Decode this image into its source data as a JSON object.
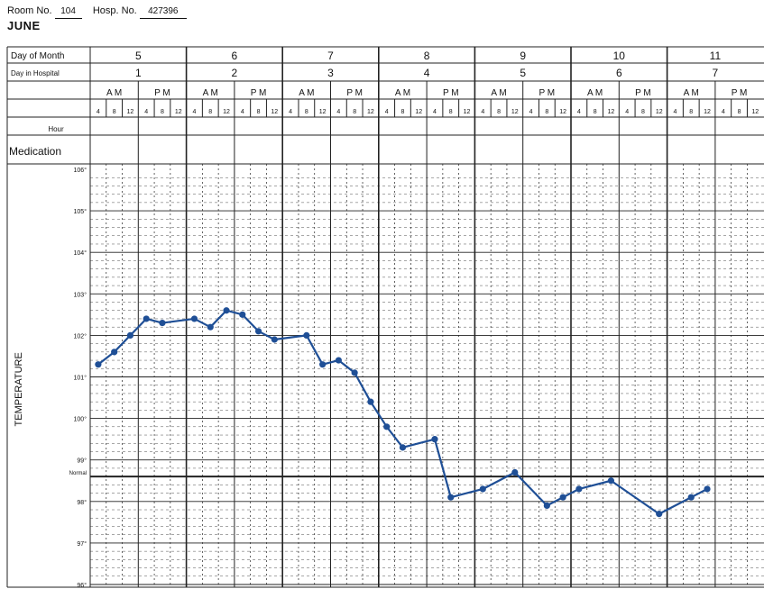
{
  "header": {
    "room_label": "Room No.",
    "room_value": "104",
    "hosp_label": "Hosp. No.",
    "hosp_value": "427396",
    "month": "JUNE"
  },
  "rows": {
    "day_of_month_label": "Day of Month",
    "day_in_hospital_label": "Day in Hospital",
    "hour_label": "Hour",
    "medication_label": "Medication",
    "am_label": "A M",
    "pm_label": "P M"
  },
  "days_of_month": [
    "5",
    "6",
    "7",
    "8",
    "9",
    "10",
    "11"
  ],
  "days_in_hospital": [
    "1",
    "2",
    "3",
    "4",
    "5",
    "6",
    "7"
  ],
  "hours": [
    "4",
    "8",
    "12",
    "4",
    "8",
    "12"
  ],
  "temperature_label": "TEMPERATURE",
  "normal_label": "Normal",
  "colors": {
    "series": "#1f4f96",
    "grid": "#222222"
  },
  "chart_data": {
    "type": "line",
    "title": "",
    "xlabel": "",
    "ylabel": "TEMPERATURE",
    "ylim": [
      96,
      106
    ],
    "yticks": [
      "96°",
      "97°",
      "98°",
      "99°",
      "100°",
      "101°",
      "102°",
      "103°",
      "104°",
      "105°",
      "106°"
    ],
    "normal_line": 98.6,
    "x_slots_per_day": 6,
    "series": [
      {
        "values": [
          [
            0,
            101.3
          ],
          [
            1,
            101.6
          ],
          [
            2,
            102.0
          ],
          [
            3,
            102.4
          ],
          [
            4,
            102.3
          ],
          [
            6,
            102.4
          ],
          [
            7,
            102.2
          ],
          [
            8,
            102.6
          ],
          [
            9,
            102.5
          ],
          [
            10,
            102.1
          ],
          [
            11,
            101.9
          ],
          [
            13,
            102.0
          ],
          [
            14,
            101.3
          ],
          [
            15,
            101.4
          ],
          [
            16,
            101.1
          ],
          [
            17,
            100.4
          ],
          [
            18,
            99.8
          ],
          [
            19,
            99.3
          ],
          [
            21,
            99.5
          ],
          [
            22,
            98.1
          ],
          [
            24,
            98.3
          ],
          [
            26,
            98.7
          ],
          [
            28,
            97.9
          ],
          [
            29,
            98.1
          ],
          [
            30,
            98.3
          ],
          [
            32,
            98.5
          ],
          [
            35,
            97.7
          ],
          [
            37,
            98.1
          ],
          [
            38,
            98.3
          ]
        ]
      }
    ]
  }
}
